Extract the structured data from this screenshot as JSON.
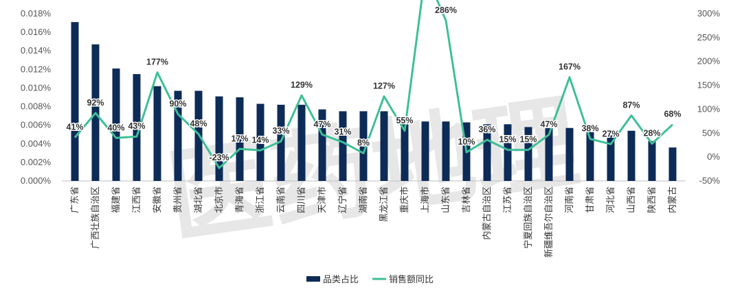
{
  "chart_data": {
    "type": "bar+line",
    "title": "",
    "categories": [
      "广东省",
      "广西壮族自治区",
      "福建省",
      "江西省",
      "安徽省",
      "贵州省",
      "湖北省",
      "北京市",
      "青海省",
      "浙江省",
      "云南省",
      "四川省",
      "天津市",
      "辽宁省",
      "湖南省",
      "黑龙江省",
      "重庆市",
      "上海市",
      "山东省",
      "吉林省",
      "内蒙古自治区",
      "江苏省",
      "宁夏回族自治区",
      "新疆维吾尔自治区",
      "河南省",
      "甘肃省",
      "河北省",
      "山西省",
      "陕西省",
      "内蒙古"
    ],
    "series": [
      {
        "name": "品类占比",
        "type": "bar",
        "axis": "left",
        "color": "#0d2b57",
        "values": [
          0.0171,
          0.0147,
          0.0121,
          0.0115,
          0.0102,
          0.0097,
          0.0097,
          0.0091,
          0.009,
          0.0083,
          0.0082,
          0.0082,
          0.0077,
          0.0075,
          0.0075,
          0.0075,
          0.0066,
          0.0064,
          0.0064,
          0.0063,
          0.0061,
          0.0061,
          0.0058,
          0.0057,
          0.0057,
          0.0053,
          0.0049,
          0.0054,
          0.0043,
          0.0036
        ]
      },
      {
        "name": "销售额同比",
        "type": "line",
        "axis": "right",
        "color": "#3dbf97",
        "values": [
          41,
          92,
          40,
          43,
          177,
          90,
          48,
          -23,
          17,
          14,
          33,
          129,
          47,
          31,
          8,
          127,
          55,
          null,
          286,
          10,
          36,
          15,
          15,
          47,
          167,
          38,
          27,
          87,
          28,
          68
        ],
        "data_labels": [
          "41%",
          "92%",
          "40%",
          "43%",
          "177%",
          "90%",
          "48%",
          "-23%",
          "17%",
          "14%",
          "33%",
          "129%",
          "47%",
          "31%",
          "8%",
          "127%",
          "55%",
          "",
          "286%",
          "10%",
          "36%",
          "15%",
          "15%",
          "47%",
          "167%",
          "38%",
          "27%",
          "87%",
          "28%",
          "68%"
        ]
      }
    ],
    "y_left": {
      "min": 0,
      "max": 0.018,
      "ticks": [
        0,
        0.002,
        0.004,
        0.006,
        0.008,
        0.01,
        0.012,
        0.014,
        0.016,
        0.018
      ],
      "tick_labels": [
        "0.000%",
        "0.002%",
        "0.004%",
        "0.006%",
        "0.008%",
        "0.010%",
        "0.012%",
        "0.014%",
        "0.016%",
        "0.018%"
      ]
    },
    "y_right": {
      "min": -50,
      "max": 300,
      "ticks": [
        -50,
        0,
        50,
        100,
        150,
        200,
        250,
        300
      ],
      "tick_labels": [
        "-50%",
        "0%",
        "50%",
        "100%",
        "150%",
        "200%",
        "250%",
        "300%"
      ]
    },
    "legend": {
      "position": "bottom"
    },
    "grid": false
  },
  "watermark": {
    "text": "医药地理"
  }
}
